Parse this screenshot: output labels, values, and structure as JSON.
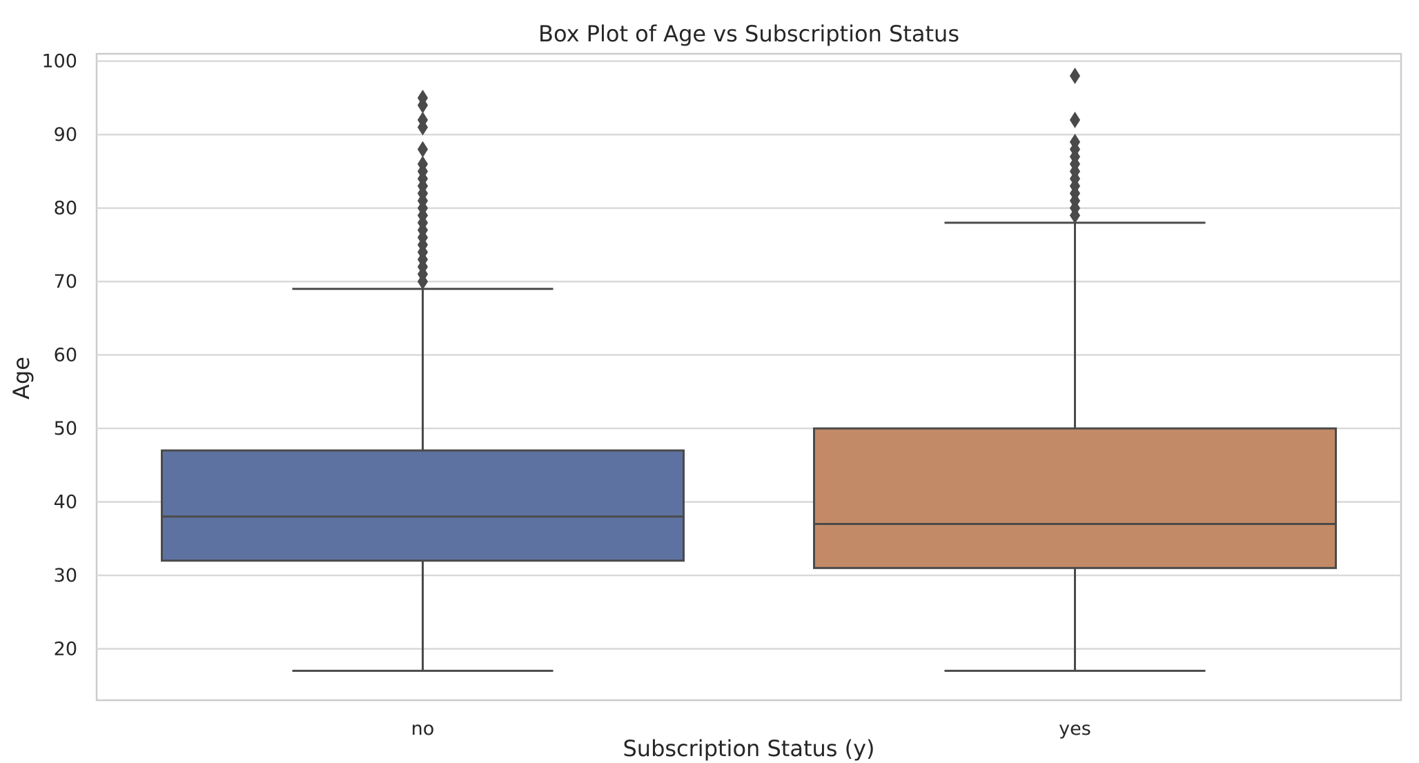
{
  "chart_data": {
    "type": "box",
    "title": "Box Plot of Age vs Subscription Status",
    "xlabel": "Subscription Status (y)",
    "ylabel": "Age",
    "ylim": [
      13,
      101
    ],
    "yticks": [
      20,
      30,
      40,
      50,
      60,
      70,
      80,
      90,
      100
    ],
    "grid": true,
    "categories": [
      "no",
      "yes"
    ],
    "series": [
      {
        "category": "no",
        "color": "#5e72a1",
        "whisker_low": 17,
        "q1": 32,
        "median": 38,
        "q3": 47,
        "whisker_high": 69,
        "outliers": [
          70,
          71,
          72,
          73,
          74,
          75,
          76,
          77,
          78,
          79,
          80,
          81,
          82,
          83,
          84,
          85,
          86,
          88,
          91,
          92,
          94,
          95
        ]
      },
      {
        "category": "yes",
        "color": "#c38a67",
        "whisker_low": 17,
        "q1": 31,
        "median": 37,
        "q3": 50,
        "whisker_high": 78,
        "outliers": [
          79,
          80,
          81,
          82,
          83,
          84,
          85,
          86,
          87,
          88,
          89,
          92,
          98
        ]
      }
    ]
  }
}
